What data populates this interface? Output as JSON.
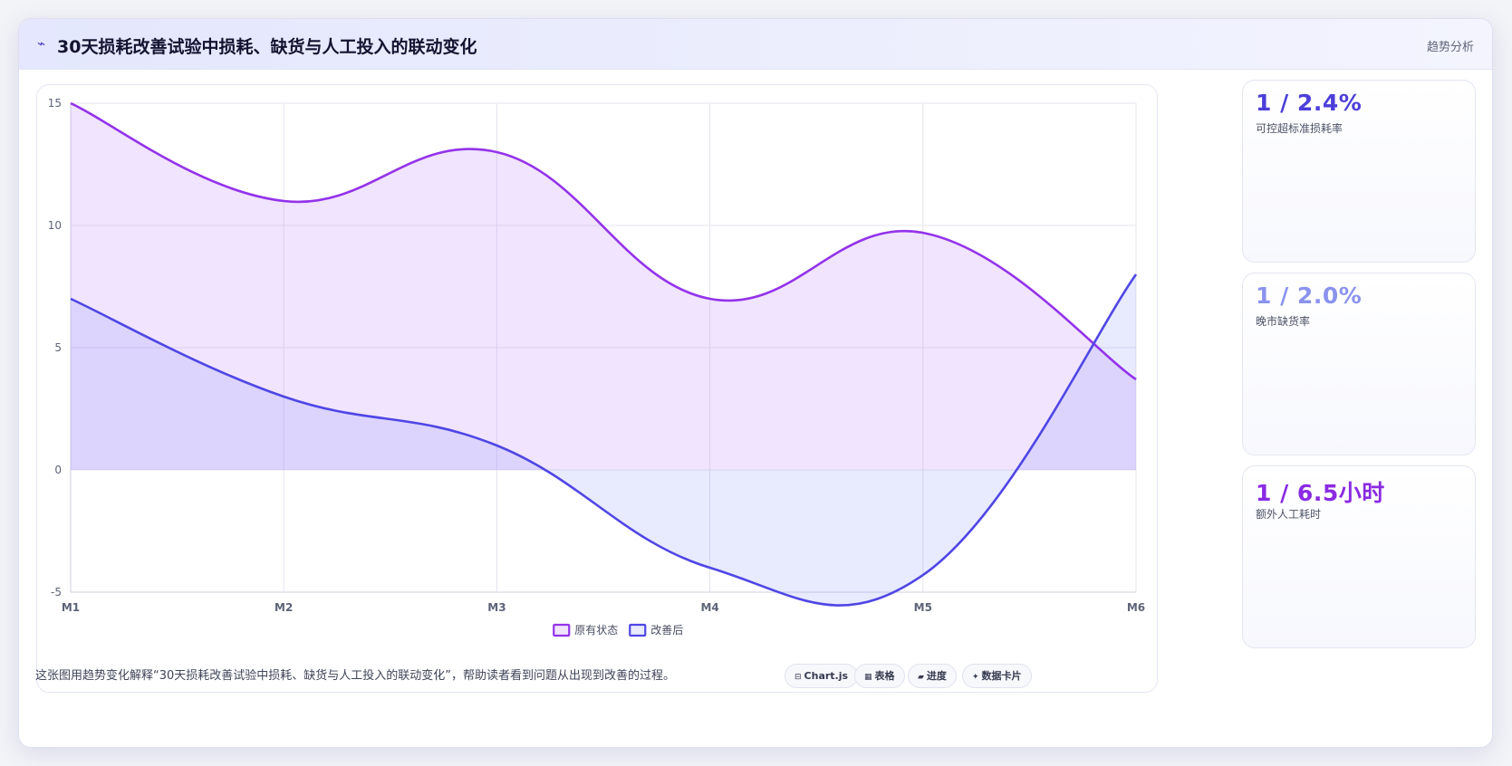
{
  "header": {
    "icon": "trend-line-icon",
    "icon_glyph": "⌁",
    "title": "30天损耗改善试验中损耗、缺货与人工投入的联动变化",
    "tag": "趋势分析"
  },
  "chart_data": {
    "type": "area",
    "categories": [
      "M1",
      "M2",
      "M3",
      "M4",
      "M5",
      "M6"
    ],
    "ylim": [
      -5,
      15
    ],
    "yticks": [
      -5,
      0,
      5,
      10,
      15
    ],
    "grid": true,
    "legend_position": "bottom",
    "series": [
      {
        "name": "原有状态",
        "values": [
          15,
          11,
          13,
          7,
          9.7,
          3.7
        ],
        "color": "#9333ea",
        "fill": "rgba(192,132,252,0.22)"
      },
      {
        "name": "改善后",
        "values": [
          7,
          3,
          1,
          -4,
          -4.3,
          8
        ],
        "color": "#4f46e5",
        "fill": "rgba(129,140,248,0.18)"
      }
    ]
  },
  "kpis": [
    {
      "value": "1 / 2.4%",
      "label": "可控超标准损耗率",
      "color": "#4c3fd9"
    },
    {
      "value": "1 / 2.0%",
      "label": "晚市缺货率",
      "color": "#8b93ee"
    },
    {
      "value": "1 / 6.5小时",
      "label": "额外人工耗时",
      "color": "#8a2be2"
    }
  ],
  "footer": {
    "description": "这张图用趋势变化解释“30天损耗改善试验中损耗、缺货与人工投入的联动变化”，帮助读者看到问题从出现到改善的过程。",
    "pills": [
      {
        "icon": "chart-icon",
        "glyph": "⊟",
        "label": "Chart.js"
      },
      {
        "icon": "table-icon",
        "glyph": "▦",
        "label": "表格"
      },
      {
        "icon": "progress-icon",
        "glyph": "▰",
        "label": "进度"
      },
      {
        "icon": "sparkle-icon",
        "glyph": "✦",
        "label": "数据卡片"
      }
    ]
  }
}
